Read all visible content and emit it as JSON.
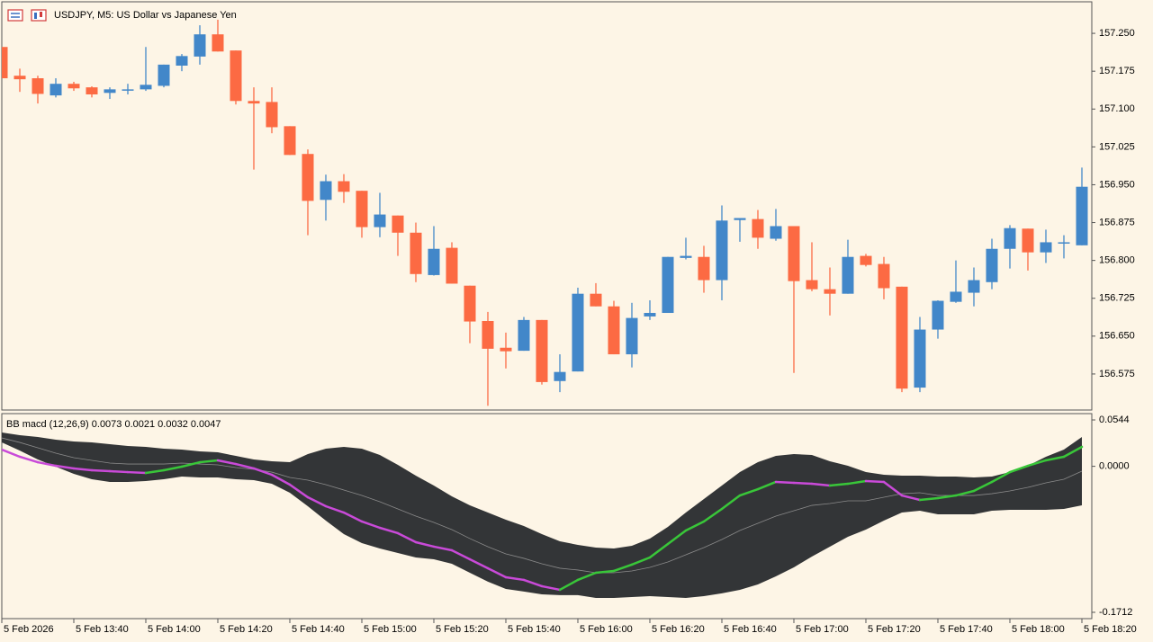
{
  "chart_data": [
    {
      "type": "candlestick",
      "title": "USDJPY, M5:  US Dollar vs Japanese Yen",
      "categories": [
        "5 Feb 2026",
        null,
        null,
        null,
        "5 Feb 13:40",
        null,
        null,
        null,
        "5 Feb 14:00",
        null,
        null,
        null,
        "5 Feb 14:20",
        null,
        null,
        null,
        "5 Feb 14:40",
        null,
        null,
        null,
        "5 Feb 15:00",
        null,
        null,
        null,
        "5 Feb 15:20",
        null,
        null,
        null,
        "5 Feb 15:40",
        null,
        null,
        null,
        "5 Feb 16:00",
        null,
        null,
        null,
        "5 Feb 16:20",
        null,
        null,
        null,
        "5 Feb 16:40",
        null,
        null,
        null,
        "5 Feb 17:00",
        null,
        null,
        null,
        "5 Feb 17:20",
        null,
        null,
        null,
        "5 Feb 17:40",
        null,
        null,
        null,
        "5 Feb 18:00",
        null,
        null,
        null,
        "5 Feb 18:20"
      ],
      "open": [
        157.223,
        157.166,
        157.161,
        157.127,
        157.15,
        157.143,
        157.132,
        157.138,
        157.139,
        157.146,
        157.186,
        157.204,
        157.248,
        157.216,
        157.116,
        157.114,
        157.066,
        157.011,
        156.92,
        156.957,
        156.938,
        156.866,
        156.889,
        156.855,
        156.771,
        156.825,
        156.75,
        156.68,
        156.627,
        156.621,
        156.682,
        156.561,
        156.58,
        156.734,
        156.709,
        156.614,
        156.689,
        156.696,
        156.805,
        156.807,
        156.761,
        156.88,
        156.882,
        156.843,
        156.868,
        156.761,
        156.743,
        156.734,
        156.809,
        156.793,
        156.748,
        156.548,
        156.663,
        156.718,
        156.736,
        156.757,
        156.823,
        156.863,
        156.816,
        156.834,
        156.83
      ],
      "high": [
        157.223,
        157.18,
        157.166,
        157.161,
        157.154,
        157.145,
        157.143,
        157.15,
        157.223,
        157.188,
        157.209,
        157.266,
        157.277,
        157.216,
        157.143,
        157.143,
        157.066,
        157.02,
        156.97,
        156.971,
        156.938,
        156.934,
        156.889,
        156.875,
        156.868,
        156.836,
        156.75,
        156.698,
        156.657,
        156.688,
        156.682,
        156.614,
        156.746,
        156.755,
        156.72,
        156.716,
        156.721,
        156.807,
        156.845,
        156.829,
        156.909,
        156.884,
        156.9,
        156.902,
        156.868,
        156.836,
        156.786,
        156.841,
        156.813,
        156.807,
        156.748,
        156.688,
        156.721,
        156.8,
        156.786,
        156.843,
        156.87,
        156.863,
        156.861,
        156.85,
        156.984
      ],
      "low": [
        157.161,
        157.134,
        157.111,
        157.123,
        157.136,
        157.123,
        157.12,
        157.129,
        157.136,
        157.143,
        157.175,
        157.188,
        157.214,
        157.109,
        156.98,
        157.052,
        157.009,
        156.85,
        156.879,
        156.914,
        156.845,
        156.846,
        156.809,
        156.757,
        156.77,
        156.754,
        156.636,
        156.512,
        156.586,
        156.621,
        156.554,
        156.539,
        156.58,
        156.709,
        156.614,
        156.588,
        156.682,
        156.696,
        156.802,
        156.736,
        156.721,
        156.837,
        156.823,
        156.839,
        156.577,
        156.739,
        156.691,
        156.734,
        156.788,
        156.723,
        156.539,
        156.539,
        156.645,
        156.716,
        156.709,
        156.743,
        156.784,
        156.78,
        156.795,
        156.804,
        156.83
      ],
      "close": [
        157.161,
        157.159,
        157.13,
        157.15,
        157.141,
        157.129,
        157.139,
        157.139,
        157.148,
        157.188,
        157.205,
        157.248,
        157.214,
        157.116,
        157.111,
        157.064,
        157.009,
        156.918,
        156.957,
        156.936,
        156.866,
        156.891,
        156.855,
        156.773,
        156.823,
        156.754,
        156.679,
        156.625,
        156.62,
        156.682,
        156.559,
        156.579,
        156.734,
        156.709,
        156.614,
        156.686,
        156.696,
        156.807,
        156.809,
        156.761,
        156.879,
        156.884,
        156.845,
        156.868,
        156.759,
        156.743,
        156.734,
        156.807,
        156.791,
        156.745,
        156.546,
        156.663,
        156.72,
        156.738,
        156.761,
        156.823,
        156.864,
        156.816,
        156.836,
        156.836,
        156.946
      ],
      "up_color": "#4287c9",
      "down_color": "#fc6a43",
      "ylim": [
        156.5036,
        157.3125
      ],
      "yticks": [
        {
          "value": 157.25,
          "label": "157.250"
        },
        157.175,
        {
          "value": 157.1,
          "label": "157.100"
        },
        157.025,
        {
          "value": 156.95,
          "label": "156.950"
        },
        156.875,
        {
          "value": 156.8,
          "label": "156.800"
        },
        156.725,
        {
          "value": 156.65,
          "label": "156.650"
        },
        156.575
      ]
    },
    {
      "type": "band",
      "title": "BB macd (12,26,9) 0.0073 0.0021 0.0032 0.0047",
      "upper": [
        0.0396,
        0.0365,
        0.0344,
        0.0312,
        0.0291,
        0.028,
        0.0259,
        0.0238,
        0.0228,
        0.0207,
        0.0196,
        0.0175,
        0.0164,
        0.0122,
        0.008,
        0.0059,
        0.0048,
        0.0143,
        0.0207,
        0.0228,
        0.0207,
        0.0133,
        0.0017,
        -0.011,
        -0.0226,
        -0.0352,
        -0.0458,
        -0.0542,
        -0.0626,
        -0.07,
        -0.0795,
        -0.0879,
        -0.0921,
        -0.0953,
        -0.0963,
        -0.0932,
        -0.0847,
        -0.071,
        -0.0542,
        -0.0384,
        -0.0226,
        -0.0068,
        0.0048,
        0.0122,
        0.0143,
        0.0133,
        0.0059,
        0.0006,
        -0.0068,
        -0.0099,
        -0.011,
        -0.011,
        -0.012,
        -0.012,
        -0.0131,
        -0.012,
        -0.0068,
        0.0006,
        0.0112,
        0.0196,
        0.0344
      ],
      "lower": [
        0.028,
        0.0185,
        0.008,
        -0.0004,
        -0.0089,
        -0.0152,
        -0.0183,
        -0.0183,
        -0.0173,
        -0.0152,
        -0.012,
        -0.0131,
        -0.0131,
        -0.0152,
        -0.0162,
        -0.0205,
        -0.031,
        -0.0468,
        -0.0637,
        -0.0795,
        -0.09,
        -0.0963,
        -0.1016,
        -0.1069,
        -0.109,
        -0.1143,
        -0.1248,
        -0.1353,
        -0.1438,
        -0.1469,
        -0.1501,
        -0.1511,
        -0.1511,
        -0.1543,
        -0.1543,
        -0.1533,
        -0.1522,
        -0.1533,
        -0.1543,
        -0.1522,
        -0.149,
        -0.1448,
        -0.1385,
        -0.129,
        -0.1185,
        -0.1058,
        -0.0942,
        -0.0826,
        -0.0742,
        -0.0637,
        -0.0542,
        -0.0521,
        -0.0563,
        -0.0563,
        -0.0563,
        -0.0521,
        -0.051,
        -0.051,
        -0.051,
        -0.05,
        -0.0458
      ],
      "middle": [
        0.0333,
        0.028,
        0.0217,
        0.0154,
        0.0101,
        0.007,
        0.0038,
        0.0027,
        0.0027,
        0.0027,
        0.0038,
        0.0027,
        0.0017,
        -0.0015,
        -0.0036,
        -0.0068,
        -0.0131,
        -0.0162,
        -0.0215,
        -0.0278,
        -0.0342,
        -0.0415,
        -0.05,
        -0.0584,
        -0.0658,
        -0.0742,
        -0.0847,
        -0.0942,
        -0.1027,
        -0.1079,
        -0.1143,
        -0.1195,
        -0.1216,
        -0.1248,
        -0.1248,
        -0.1227,
        -0.1185,
        -0.1122,
        -0.1037,
        -0.0953,
        -0.0858,
        -0.0753,
        -0.0668,
        -0.0584,
        -0.0521,
        -0.0458,
        -0.0436,
        -0.0405,
        -0.0405,
        -0.0363,
        -0.0321,
        -0.031,
        -0.0342,
        -0.0342,
        -0.0342,
        -0.0321,
        -0.0289,
        -0.0247,
        -0.0194,
        -0.0152,
        -0.0057
      ],
      "values": [
        0.0196,
        0.0112,
        0.0048,
        0.0006,
        -0.0025,
        -0.0046,
        -0.0057,
        -0.0068,
        -0.0078,
        -0.0046,
        -0.0004,
        0.0048,
        0.007,
        0.0027,
        -0.0025,
        -0.0099,
        -0.0215,
        -0.0363,
        -0.0468,
        -0.0542,
        -0.0647,
        -0.0721,
        -0.0784,
        -0.089,
        -0.0942,
        -0.0985,
        -0.109,
        -0.1195,
        -0.1301,
        -0.1332,
        -0.1406,
        -0.1448,
        -0.1332,
        -0.1248,
        -0.1227,
        -0.1153,
        -0.1069,
        -0.0911,
        -0.0753,
        -0.0647,
        -0.05,
        -0.0342,
        -0.0268,
        -0.0183,
        -0.0194,
        -0.0205,
        -0.0226,
        -0.0205,
        -0.0173,
        -0.0183,
        -0.0342,
        -0.0394,
        -0.0373,
        -0.0342,
        -0.0289,
        -0.0183,
        -0.0068,
        0.0006,
        0.007,
        0.0112,
        0.0228
      ],
      "band_color": "#333537",
      "middle_color": "#8a8a8a",
      "up_color": "#39c639",
      "down_color": "#c94ad8",
      "ylim": [
        -0.1786,
        0.0618
      ],
      "yticks": [
        0.0544,
        {
          "value": 0,
          "label": "0.0000"
        },
        -0.1712
      ]
    }
  ]
}
